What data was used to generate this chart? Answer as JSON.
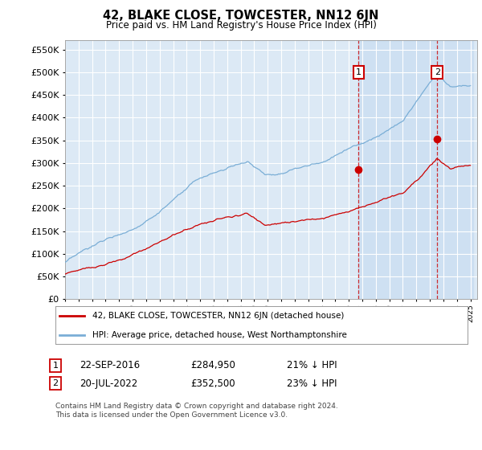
{
  "title": "42, BLAKE CLOSE, TOWCESTER, NN12 6JN",
  "subtitle": "Price paid vs. HM Land Registry's House Price Index (HPI)",
  "ylim": [
    0,
    570000
  ],
  "yticks": [
    0,
    50000,
    100000,
    150000,
    200000,
    250000,
    300000,
    350000,
    400000,
    450000,
    500000,
    550000
  ],
  "bg_color": "#dce9f5",
  "shade_color": "#c5daf0",
  "grid_color": "#ffffff",
  "red_color": "#cc0000",
  "blue_color": "#7aaed6",
  "sale1_date_num": 2016.73,
  "sale1_price": 284950,
  "sale2_date_num": 2022.55,
  "sale2_price": 352500,
  "legend_label_red": "42, BLAKE CLOSE, TOWCESTER, NN12 6JN (detached house)",
  "legend_label_blue": "HPI: Average price, detached house, West Northamptonshire",
  "footnote": "Contains HM Land Registry data © Crown copyright and database right 2024.\nThis data is licensed under the Open Government Licence v3.0."
}
